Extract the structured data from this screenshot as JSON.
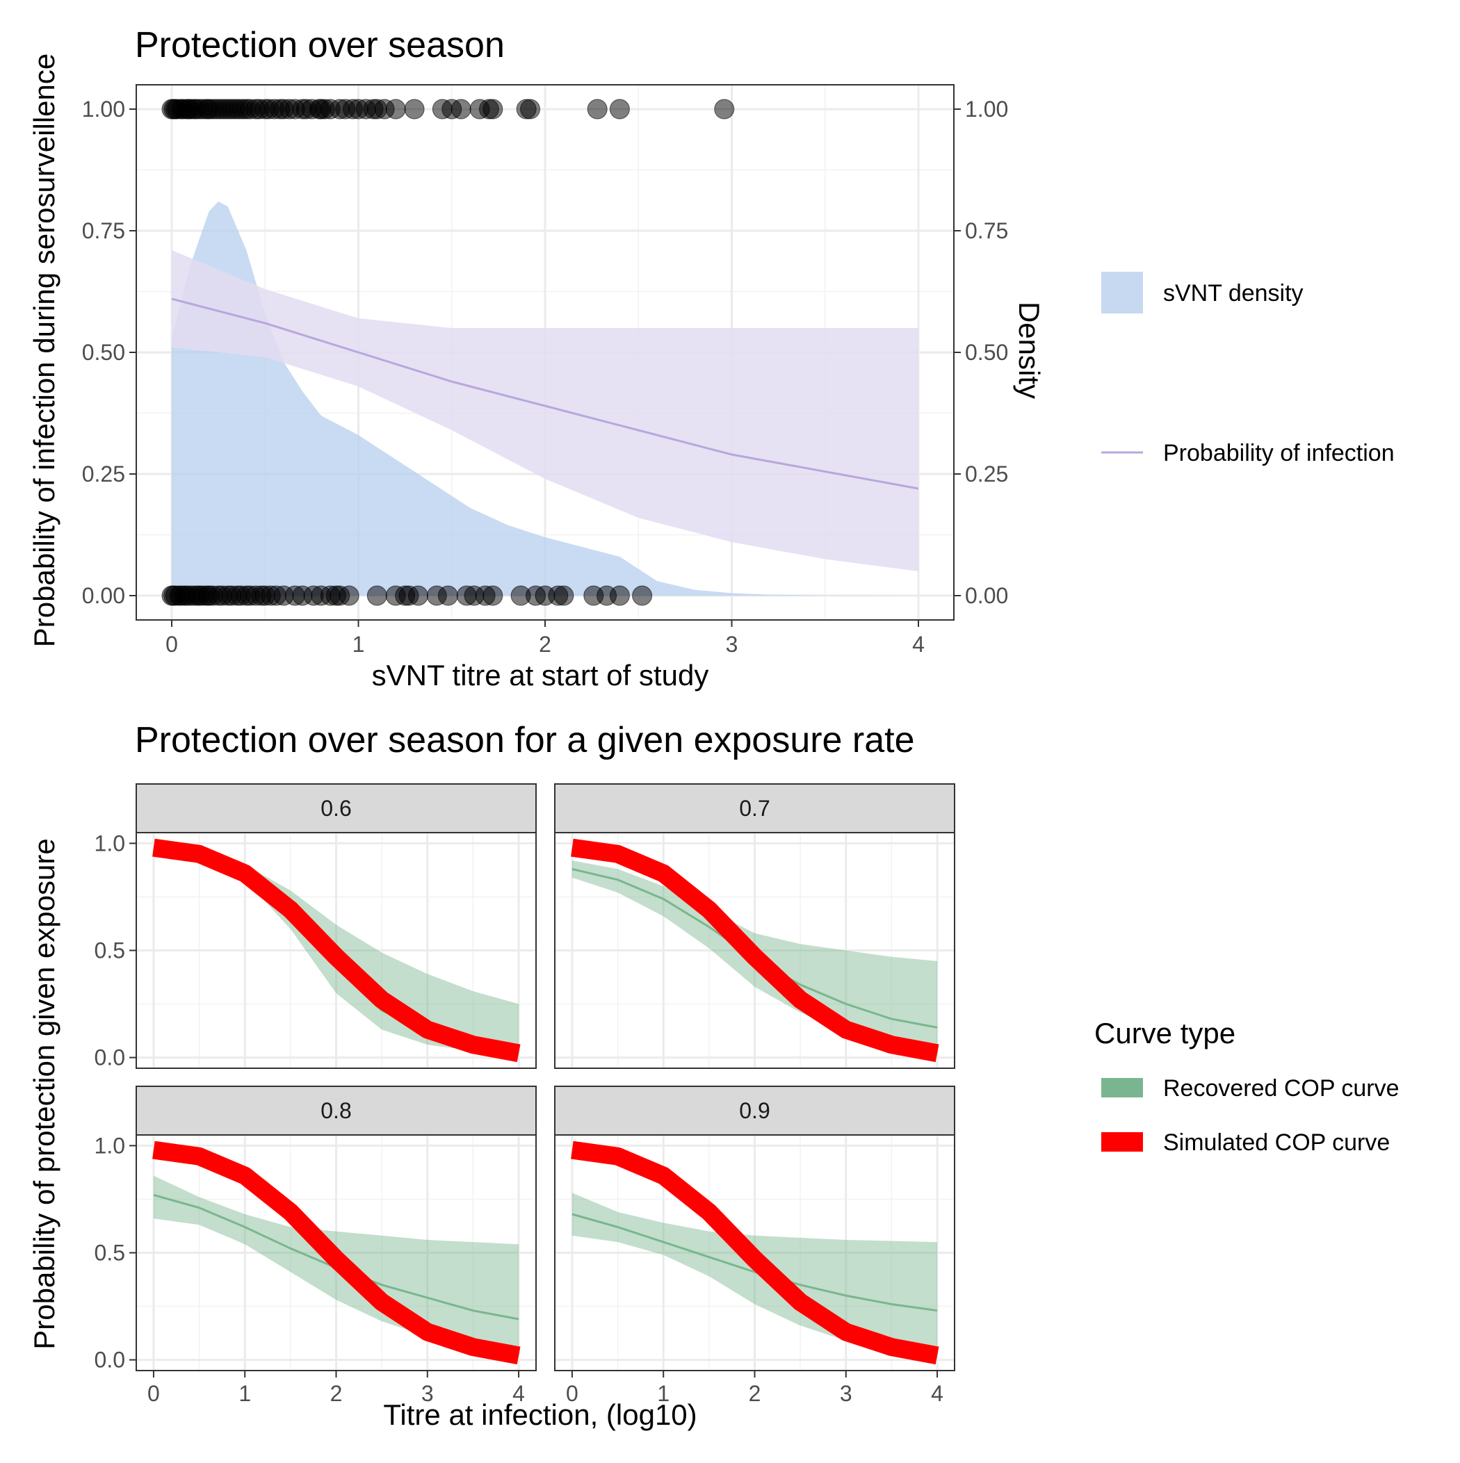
{
  "chart_data": [
    {
      "type": "scatter",
      "title": "Protection over season",
      "xlabel": "sVNT titre at start of study",
      "ylabel": "Probability of infection during serosurveillence",
      "y2label": "Density",
      "xlim": [
        -0.19,
        4.19
      ],
      "ylim": [
        -0.05,
        1.05
      ],
      "x_ticks": [
        0,
        1,
        2,
        3,
        4
      ],
      "x_tick_labels": [
        "0",
        "1",
        "2",
        "3",
        "4"
      ],
      "y_ticks": [
        0,
        0.25,
        0.5,
        0.75,
        1
      ],
      "y_tick_labels": [
        "0.00",
        "0.25",
        "0.50",
        "0.75",
        "1.00"
      ],
      "y2_tick_labels": [
        "0.00",
        "0.25",
        "0.50",
        "0.75",
        "1.00"
      ],
      "grid": true,
      "legend": {
        "position": "right",
        "items": [
          {
            "label": "sVNT density",
            "kind": "fill",
            "color": "#b5cfee"
          },
          {
            "label": "Probability of infection",
            "kind": "line",
            "color": "#b8a7dd"
          }
        ]
      },
      "points_infected": {
        "y": 1,
        "x": [
          0.0,
          0.01,
          0.02,
          0.03,
          0.05,
          0.06,
          0.08,
          0.09,
          0.1,
          0.12,
          0.13,
          0.15,
          0.17,
          0.19,
          0.2,
          0.22,
          0.24,
          0.26,
          0.28,
          0.3,
          0.32,
          0.34,
          0.36,
          0.38,
          0.4,
          0.42,
          0.45,
          0.47,
          0.5,
          0.52,
          0.55,
          0.58,
          0.6,
          0.63,
          0.66,
          0.7,
          0.72,
          0.75,
          0.79,
          0.8,
          0.82,
          0.85,
          0.9,
          0.93,
          0.97,
          1.0,
          1.04,
          1.08,
          1.1,
          1.14,
          1.2,
          1.3,
          1.45,
          1.5,
          1.55,
          1.65,
          1.7,
          1.72,
          1.9,
          1.92,
          2.28,
          2.4,
          2.96
        ],
        "color": "#000000",
        "opacity": 0.5
      },
      "points_uninfected": {
        "y": 0,
        "x": [
          0.0,
          0.01,
          0.02,
          0.04,
          0.05,
          0.07,
          0.08,
          0.1,
          0.12,
          0.14,
          0.15,
          0.17,
          0.19,
          0.2,
          0.22,
          0.25,
          0.27,
          0.3,
          0.32,
          0.35,
          0.37,
          0.4,
          0.42,
          0.45,
          0.48,
          0.5,
          0.53,
          0.56,
          0.6,
          0.66,
          0.7,
          0.76,
          0.8,
          0.85,
          0.88,
          0.9,
          0.95,
          1.1,
          1.2,
          1.25,
          1.27,
          1.32,
          1.42,
          1.48,
          1.58,
          1.62,
          1.68,
          1.72,
          1.87,
          1.95,
          2.0,
          2.07,
          2.1,
          2.26,
          2.33,
          2.4,
          2.52
        ],
        "color": "#000000",
        "opacity": 0.5
      },
      "density": {
        "name": "sVNT density",
        "color": "#b5cfee",
        "x": [
          0.0,
          0.1,
          0.2,
          0.25,
          0.3,
          0.4,
          0.5,
          0.6,
          0.7,
          0.8,
          0.9,
          1.0,
          1.2,
          1.4,
          1.6,
          1.8,
          2.0,
          2.2,
          2.4,
          2.6,
          2.8,
          3.0,
          3.2,
          3.5,
          4.0
        ],
        "y": [
          0.53,
          0.68,
          0.79,
          0.81,
          0.8,
          0.71,
          0.58,
          0.48,
          0.42,
          0.37,
          0.35,
          0.33,
          0.28,
          0.23,
          0.18,
          0.145,
          0.12,
          0.1,
          0.08,
          0.03,
          0.012,
          0.005,
          0.002,
          0.0005,
          0.0
        ]
      },
      "probability_curve": {
        "name": "Probability of infection",
        "color": "#b8a7dd",
        "band_color": "#e3dcf2",
        "x": [
          0,
          0.5,
          1,
          1.5,
          2,
          2.5,
          3,
          3.5,
          4
        ],
        "y": [
          0.61,
          0.56,
          0.5,
          0.44,
          0.39,
          0.34,
          0.29,
          0.255,
          0.22
        ],
        "lower": [
          0.51,
          0.49,
          0.43,
          0.34,
          0.24,
          0.16,
          0.11,
          0.075,
          0.05
        ],
        "upper": [
          0.71,
          0.63,
          0.57,
          0.55,
          0.55,
          0.55,
          0.55,
          0.55,
          0.55
        ]
      }
    },
    {
      "type": "line",
      "title": "Protection over season for a given exposure rate",
      "xlabel": "Titre at infection, (log10)",
      "ylabel": "Probability of protection given exposure",
      "xlim": [
        -0.19,
        4.19
      ],
      "ylim": [
        -0.05,
        1.05
      ],
      "x_ticks": [
        0,
        1,
        2,
        3,
        4
      ],
      "x_tick_labels": [
        "0",
        "1",
        "2",
        "3",
        "4"
      ],
      "y_ticks": [
        0,
        0.5,
        1
      ],
      "y_tick_labels": [
        "0.0",
        "0.5",
        "1.0"
      ],
      "grid": true,
      "legend": {
        "title": "Curve type",
        "position": "right",
        "items": [
          {
            "label": "Recovered COP curve",
            "color": "#79b68f"
          },
          {
            "label": "Simulated COP curve",
            "color": "#ff0000"
          }
        ]
      },
      "simulated_curve": {
        "name": "Simulated COP curve",
        "color": "#ff0000",
        "x": [
          0,
          0.5,
          1,
          1.5,
          2,
          2.5,
          3,
          3.5,
          4
        ],
        "y": [
          0.98,
          0.95,
          0.86,
          0.69,
          0.47,
          0.27,
          0.13,
          0.06,
          0.02
        ]
      },
      "facets": [
        {
          "label": "0.6",
          "recovered": {
            "x": [
              0,
              0.5,
              1,
              1.5,
              2,
              2.5,
              3,
              3.5,
              4
            ],
            "y": [
              0.97,
              0.94,
              0.86,
              0.68,
              0.42,
              0.22,
              0.12,
              0.07,
              0.05
            ],
            "lower": [
              0.96,
              0.92,
              0.83,
              0.6,
              0.3,
              0.13,
              0.06,
              0.03,
              0.01
            ],
            "upper": [
              0.98,
              0.96,
              0.9,
              0.78,
              0.62,
              0.49,
              0.39,
              0.31,
              0.25
            ]
          }
        },
        {
          "label": "0.7",
          "recovered": {
            "x": [
              0,
              0.5,
              1,
              1.5,
              2,
              2.5,
              3,
              3.5,
              4
            ],
            "y": [
              0.88,
              0.83,
              0.74,
              0.61,
              0.46,
              0.34,
              0.25,
              0.18,
              0.14
            ],
            "lower": [
              0.84,
              0.77,
              0.66,
              0.51,
              0.33,
              0.21,
              0.12,
              0.07,
              0.03
            ],
            "upper": [
              0.92,
              0.88,
              0.8,
              0.69,
              0.58,
              0.53,
              0.5,
              0.47,
              0.45
            ]
          }
        },
        {
          "label": "0.8",
          "recovered": {
            "x": [
              0,
              0.5,
              1,
              1.5,
              2,
              2.5,
              3,
              3.5,
              4
            ],
            "y": [
              0.77,
              0.71,
              0.62,
              0.52,
              0.43,
              0.35,
              0.29,
              0.23,
              0.19
            ],
            "lower": [
              0.66,
              0.63,
              0.54,
              0.41,
              0.28,
              0.18,
              0.11,
              0.06,
              0.02
            ],
            "upper": [
              0.86,
              0.76,
              0.68,
              0.62,
              0.6,
              0.58,
              0.56,
              0.55,
              0.54
            ]
          }
        },
        {
          "label": "0.9",
          "recovered": {
            "x": [
              0,
              0.5,
              1,
              1.5,
              2,
              2.5,
              3,
              3.5,
              4
            ],
            "y": [
              0.68,
              0.62,
              0.55,
              0.48,
              0.41,
              0.35,
              0.3,
              0.26,
              0.23
            ],
            "lower": [
              0.58,
              0.55,
              0.49,
              0.39,
              0.26,
              0.16,
              0.09,
              0.05,
              0.02
            ],
            "upper": [
              0.78,
              0.69,
              0.64,
              0.6,
              0.58,
              0.57,
              0.56,
              0.555,
              0.55
            ]
          }
        }
      ]
    }
  ]
}
